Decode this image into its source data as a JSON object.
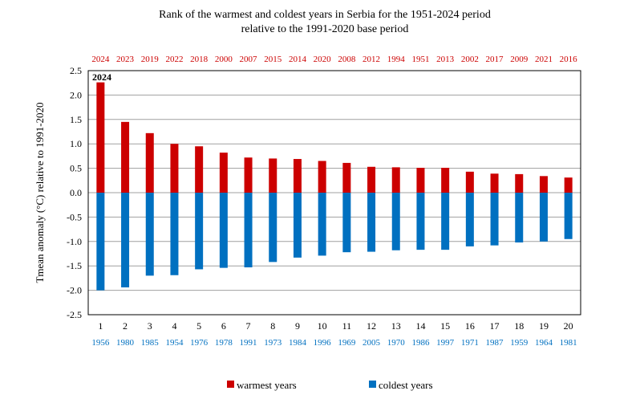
{
  "chart_data": {
    "type": "bar",
    "title_line1": "Rank of the warmest and coldest years in Serbia for the 1951-2024 period",
    "title_line2": "relative to the 1991-2020 base period",
    "ylabel": "Tmean anomaly (°C) relative to 1991-2020",
    "ylim": [
      -2.5,
      2.5
    ],
    "ytick_labels": [
      "2.5",
      "2.0",
      "1.5",
      "1.0",
      "0.5",
      "0.0",
      "-0.5",
      "-1.0",
      "-1.5",
      "-2.0",
      "-2.5"
    ],
    "ytick_values": [
      2.5,
      2.0,
      1.5,
      1.0,
      0.5,
      0.0,
      -0.5,
      -1.0,
      -1.5,
      -2.0,
      -2.5
    ],
    "grid": true,
    "ranks": [
      "1",
      "2",
      "3",
      "4",
      "5",
      "6",
      "7",
      "8",
      "9",
      "10",
      "11",
      "12",
      "13",
      "14",
      "15",
      "16",
      "17",
      "18",
      "19",
      "20"
    ],
    "warmest_years": [
      "2024",
      "2023",
      "2019",
      "2022",
      "2018",
      "2000",
      "2007",
      "2015",
      "2014",
      "2020",
      "2008",
      "2012",
      "1994",
      "1951",
      "2013",
      "2002",
      "2017",
      "2009",
      "2021",
      "2016"
    ],
    "coldest_years": [
      "1956",
      "1980",
      "1985",
      "1954",
      "1976",
      "1978",
      "1991",
      "1973",
      "1984",
      "1996",
      "1969",
      "2005",
      "1970",
      "1986",
      "1997",
      "1971",
      "1987",
      "1959",
      "1964",
      "1981"
    ],
    "annotation": "2024",
    "series": [
      {
        "name": "warmest years",
        "color": "#cc0000",
        "values": [
          2.26,
          1.45,
          1.22,
          1.0,
          0.95,
          0.82,
          0.72,
          0.7,
          0.69,
          0.65,
          0.61,
          0.53,
          0.52,
          0.51,
          0.51,
          0.43,
          0.39,
          0.38,
          0.34,
          0.31
        ]
      },
      {
        "name": "coldest years",
        "color": "#0070c0",
        "values": [
          -2.0,
          -1.94,
          -1.7,
          -1.69,
          -1.57,
          -1.54,
          -1.53,
          -1.42,
          -1.33,
          -1.29,
          -1.22,
          -1.21,
          -1.18,
          -1.17,
          -1.17,
          -1.1,
          -1.08,
          -1.02,
          -1.0,
          -0.95
        ]
      }
    ],
    "warm_label_color": "#cc0000",
    "cold_label_color": "#0070c0",
    "legend_position": "bottom-center"
  }
}
